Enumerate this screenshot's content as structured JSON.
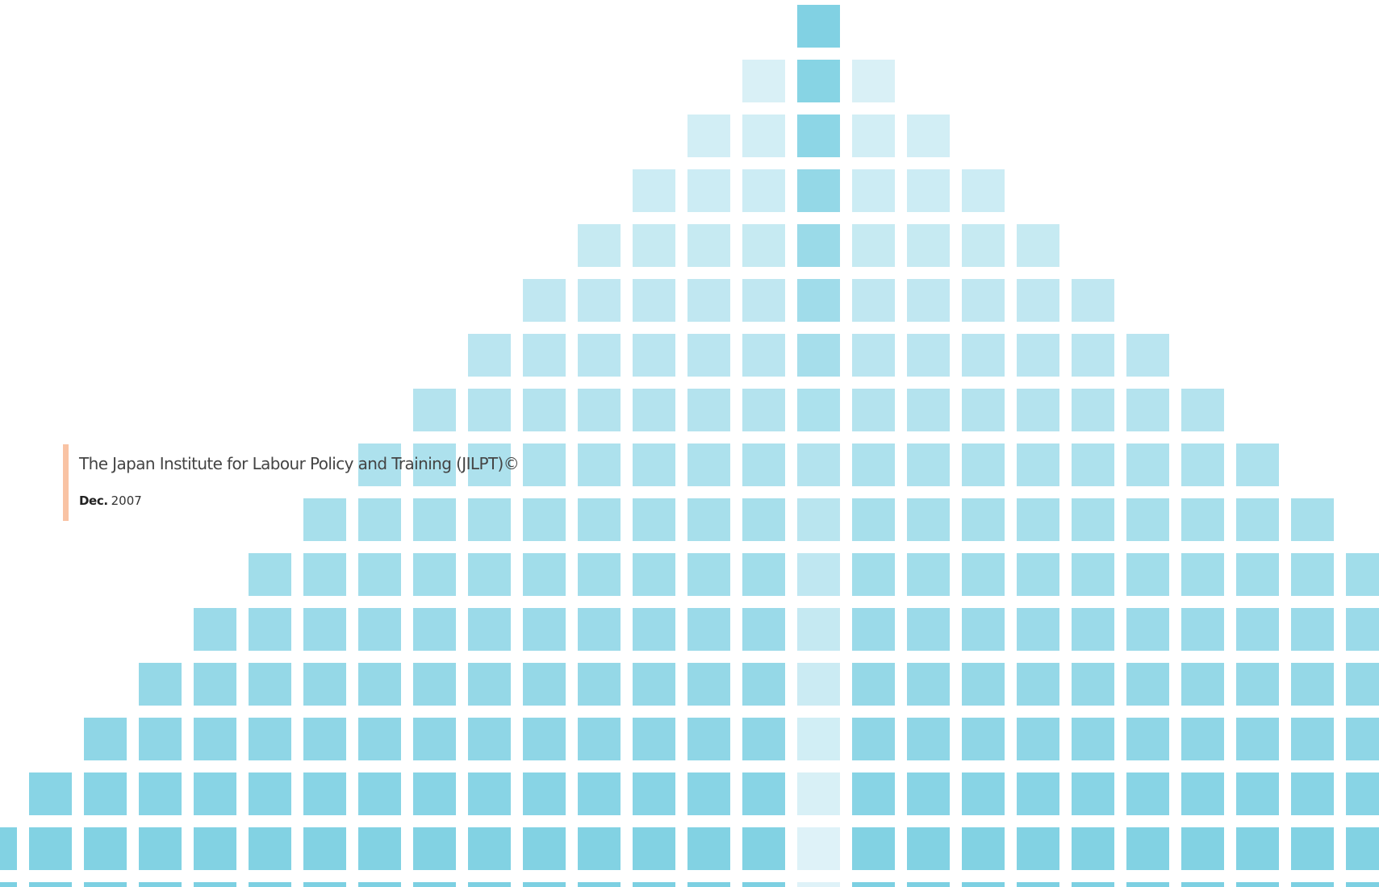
{
  "cover": {
    "organization": "The Japan Institute for Labour Policy and Training (JILPT)©",
    "month": "Dec.",
    "year": "2007",
    "accent_color": "#f9c3a4",
    "tile_base_color": "#7dd0e2",
    "tile_light_color": "#e4f4f9"
  }
}
